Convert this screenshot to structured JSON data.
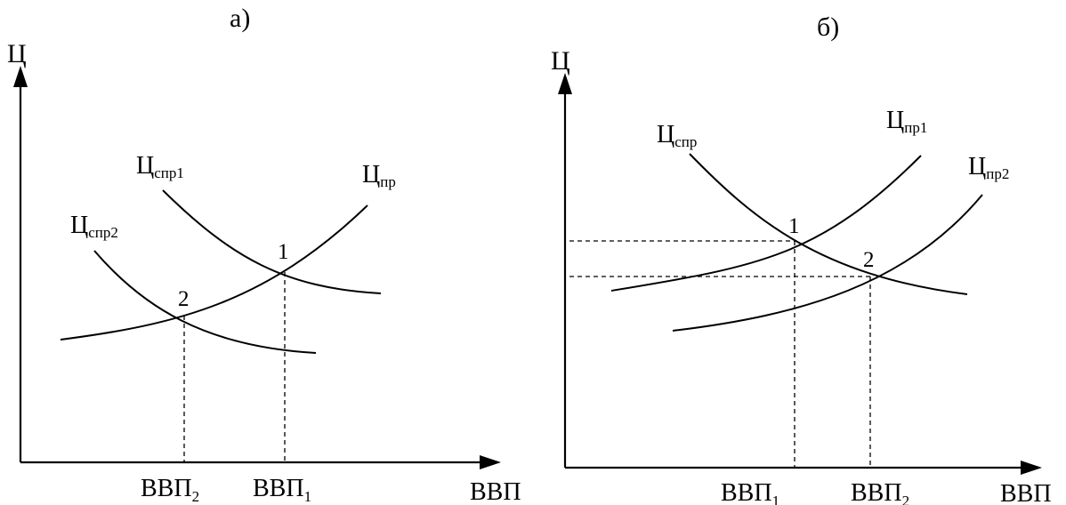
{
  "panel_a": {
    "title": "а)",
    "y_axis_label": "Ц",
    "x_axis_label": "ВВП",
    "curves": {
      "supply": {
        "base": "Ц",
        "sub": "пр"
      },
      "demand1": {
        "base": "Ц",
        "sub": "спр1"
      },
      "demand2": {
        "base": "Ц",
        "sub": "спр2"
      }
    },
    "points": {
      "p1": "1",
      "p2": "2"
    },
    "ticks": {
      "gdp2": {
        "base": "ВВП",
        "sub": "2"
      },
      "gdp1": {
        "base": "ВВП",
        "sub": "1"
      }
    }
  },
  "panel_b": {
    "title": "б)",
    "y_axis_label": "Ц",
    "x_axis_label": "ВВП",
    "curves": {
      "demand": {
        "base": "Ц",
        "sub": "спр"
      },
      "supply1": {
        "base": "Ц",
        "sub": "пр1"
      },
      "supply2": {
        "base": "Ц",
        "sub": "пр2"
      }
    },
    "points": {
      "p1": "1",
      "p2": "2"
    },
    "ticks": {
      "gdp1": {
        "base": "ВВП",
        "sub": "1"
      },
      "gdp2": {
        "base": "ВВП",
        "sub": "2"
      }
    }
  }
}
